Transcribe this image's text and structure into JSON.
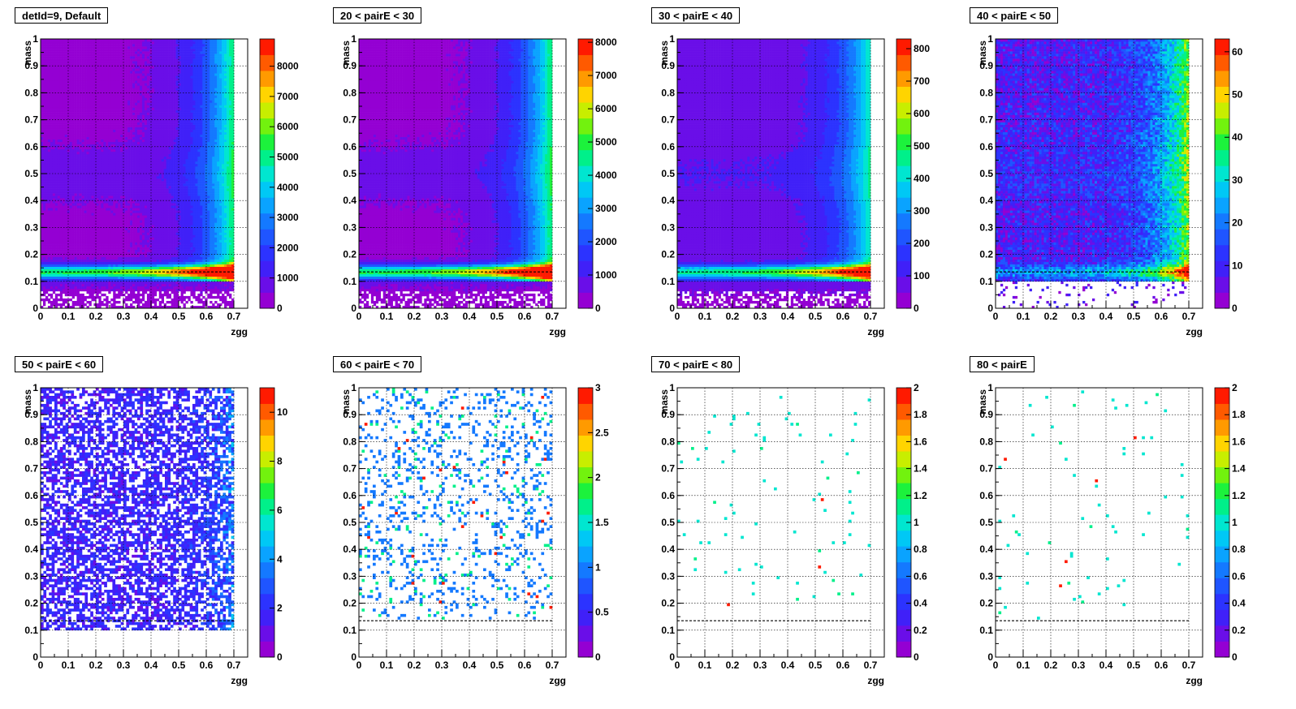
{
  "chart_data": [
    {
      "type": "heatmap",
      "title": "detId=9, Default",
      "xlabel": "zgg",
      "ylabel": "mass",
      "xlim": [
        0,
        0.75
      ],
      "ylim": [
        0,
        1
      ],
      "xticks": [
        "0",
        "0.1",
        "0.2",
        "0.3",
        "0.4",
        "0.5",
        "0.6",
        "0.7"
      ],
      "yticks": [
        "0",
        "0.1",
        "0.2",
        "0.3",
        "0.4",
        "0.5",
        "0.6",
        "0.7",
        "0.8",
        "0.9",
        "1"
      ],
      "zticks": [
        "0",
        "1000",
        "2000",
        "3000",
        "4000",
        "5000",
        "6000",
        "7000",
        "8000"
      ],
      "zmax": 8900,
      "grid": true,
      "cut_line_mass": 0.135,
      "pattern": "dense",
      "density": {
        "background_fraction": 0.045,
        "band_fraction": 1.0,
        "edge_fraction": 0.55,
        "low_mass_fraction": 0.02
      }
    },
    {
      "type": "heatmap",
      "title": "20 < pairE < 30",
      "xlabel": "zgg",
      "ylabel": "mass",
      "xlim": [
        0,
        0.75
      ],
      "ylim": [
        0,
        1
      ],
      "xticks": [
        "0",
        "0.1",
        "0.2",
        "0.3",
        "0.4",
        "0.5",
        "0.6",
        "0.7"
      ],
      "yticks": [
        "0",
        "0.1",
        "0.2",
        "0.3",
        "0.4",
        "0.5",
        "0.6",
        "0.7",
        "0.8",
        "0.9",
        "1"
      ],
      "zticks": [
        "0",
        "1000",
        "2000",
        "3000",
        "4000",
        "5000",
        "6000",
        "7000",
        "8000"
      ],
      "zmax": 8100,
      "grid": true,
      "cut_line_mass": 0.135,
      "pattern": "dense",
      "density": {
        "background_fraction": 0.045,
        "band_fraction": 1.0,
        "edge_fraction": 0.55,
        "low_mass_fraction": 0.02
      }
    },
    {
      "type": "heatmap",
      "title": "30 < pairE < 40",
      "xlabel": "zgg",
      "ylabel": "mass",
      "xlim": [
        0,
        0.75
      ],
      "ylim": [
        0,
        1
      ],
      "xticks": [
        "0",
        "0.1",
        "0.2",
        "0.3",
        "0.4",
        "0.5",
        "0.6",
        "0.7"
      ],
      "yticks": [
        "0",
        "0.1",
        "0.2",
        "0.3",
        "0.4",
        "0.5",
        "0.6",
        "0.7",
        "0.8",
        "0.9",
        "1"
      ],
      "zticks": [
        "0",
        "100",
        "200",
        "300",
        "400",
        "500",
        "600",
        "700",
        "800"
      ],
      "zmax": 830,
      "grid": true,
      "cut_line_mass": 0.135,
      "pattern": "dense",
      "density": {
        "background_fraction": 0.08,
        "band_fraction": 0.85,
        "edge_fraction": 0.45,
        "low_mass_fraction": 0.03
      }
    },
    {
      "type": "heatmap",
      "title": "40 < pairE < 50",
      "xlabel": "zgg",
      "ylabel": "mass",
      "xlim": [
        0,
        0.75
      ],
      "ylim": [
        0,
        1
      ],
      "xticks": [
        "0",
        "0.1",
        "0.2",
        "0.3",
        "0.4",
        "0.5",
        "0.6",
        "0.7"
      ],
      "yticks": [
        "0",
        "0.1",
        "0.2",
        "0.3",
        "0.4",
        "0.5",
        "0.6",
        "0.7",
        "0.8",
        "0.9",
        "1"
      ],
      "zticks": [
        "0",
        "10",
        "20",
        "30",
        "40",
        "50",
        "60"
      ],
      "zmax": 63,
      "grid": true,
      "cut_line_mass": 0.135,
      "pattern": "medium",
      "density": {
        "background_fraction": 0.14,
        "band_fraction": 0.4,
        "edge_fraction": 0.55,
        "low_mass_fraction": 0.03
      }
    },
    {
      "type": "heatmap",
      "title": "50 < pairE < 60",
      "xlabel": "zgg",
      "ylabel": "mass",
      "xlim": [
        0,
        0.75
      ],
      "ylim": [
        0,
        1
      ],
      "xticks": [
        "0",
        "0.1",
        "0.2",
        "0.3",
        "0.4",
        "0.5",
        "0.6",
        "0.7"
      ],
      "yticks": [
        "0",
        "0.1",
        "0.2",
        "0.3",
        "0.4",
        "0.5",
        "0.6",
        "0.7",
        "0.8",
        "0.9",
        "1"
      ],
      "zticks": [
        "0",
        "2",
        "4",
        "6",
        "8",
        "10"
      ],
      "zmax": 11,
      "grid": true,
      "cut_line_mass": 0.135,
      "pattern": "sparse",
      "density": {
        "background_fraction": 0.1,
        "band_fraction": 0.2,
        "edge_fraction": 0.3,
        "low_mass_fraction": 0.0
      }
    },
    {
      "type": "heatmap",
      "title": "60 < pairE < 70",
      "xlabel": "zgg",
      "ylabel": "mass",
      "xlim": [
        0,
        0.75
      ],
      "ylim": [
        0,
        1
      ],
      "xticks": [
        "0",
        "0.1",
        "0.2",
        "0.3",
        "0.4",
        "0.5",
        "0.6",
        "0.7"
      ],
      "yticks": [
        "0",
        "0.1",
        "0.2",
        "0.3",
        "0.4",
        "0.5",
        "0.6",
        "0.7",
        "0.8",
        "0.9",
        "1"
      ],
      "zticks": [
        "0",
        "0.5",
        "1",
        "1.5",
        "2",
        "2.5",
        "3"
      ],
      "zmax": 3,
      "grid": true,
      "cut_line_mass": 0.135,
      "pattern": "scatter",
      "density": {
        "background_fraction": 0.34,
        "band_fraction": 0.4,
        "edge_fraction": 0.45,
        "low_mass_fraction": 0.0
      }
    },
    {
      "type": "heatmap",
      "title": "70 < pairE < 80",
      "xlabel": "zgg",
      "ylabel": "mass",
      "xlim": [
        0,
        0.75
      ],
      "ylim": [
        0,
        1
      ],
      "xticks": [
        "0",
        "0.1",
        "0.2",
        "0.3",
        "0.4",
        "0.5",
        "0.6",
        "0.7"
      ],
      "yticks": [
        "0",
        "0.1",
        "0.2",
        "0.3",
        "0.4",
        "0.5",
        "0.6",
        "0.7",
        "0.8",
        "0.9",
        "1"
      ],
      "zticks": [
        "0",
        "0.2",
        "0.4",
        "0.6",
        "0.8",
        "1",
        "1.2",
        "1.4",
        "1.6",
        "1.8",
        "2"
      ],
      "zmax": 2,
      "grid": true,
      "cut_line_mass": 0.135,
      "pattern": "scatter",
      "density": {
        "background_fraction": 0.5,
        "band_fraction": 0.5,
        "edge_fraction": 0.5,
        "low_mass_fraction": 0.0
      }
    },
    {
      "type": "heatmap",
      "title": "80 < pairE",
      "xlabel": "zgg",
      "ylabel": "mass",
      "xlim": [
        0,
        0.75
      ],
      "ylim": [
        0,
        1
      ],
      "xticks": [
        "0",
        "0.1",
        "0.2",
        "0.3",
        "0.4",
        "0.5",
        "0.6",
        "0.7"
      ],
      "yticks": [
        "0",
        "0.1",
        "0.2",
        "0.3",
        "0.4",
        "0.5",
        "0.6",
        "0.7",
        "0.8",
        "0.9",
        "1"
      ],
      "zticks": [
        "0",
        "0.2",
        "0.4",
        "0.6",
        "0.8",
        "1",
        "1.2",
        "1.4",
        "1.6",
        "1.8",
        "2"
      ],
      "zmax": 2,
      "grid": true,
      "cut_line_mass": 0.135,
      "pattern": "scatter",
      "density": {
        "background_fraction": 0.5,
        "band_fraction": 0.5,
        "edge_fraction": 0.5,
        "low_mass_fraction": 0.0
      }
    }
  ],
  "colors": {
    "palette": [
      "#9400d3",
      "#6a0ee8",
      "#4020f8",
      "#2c33ff",
      "#1f55ff",
      "#1479ff",
      "#0aa3ff",
      "#00c8f5",
      "#00e6d0",
      "#00f08a",
      "#1cf23c",
      "#72f20e",
      "#c8ee00",
      "#ffd400",
      "#ff9a00",
      "#ff5a00",
      "#ff1a00"
    ]
  }
}
